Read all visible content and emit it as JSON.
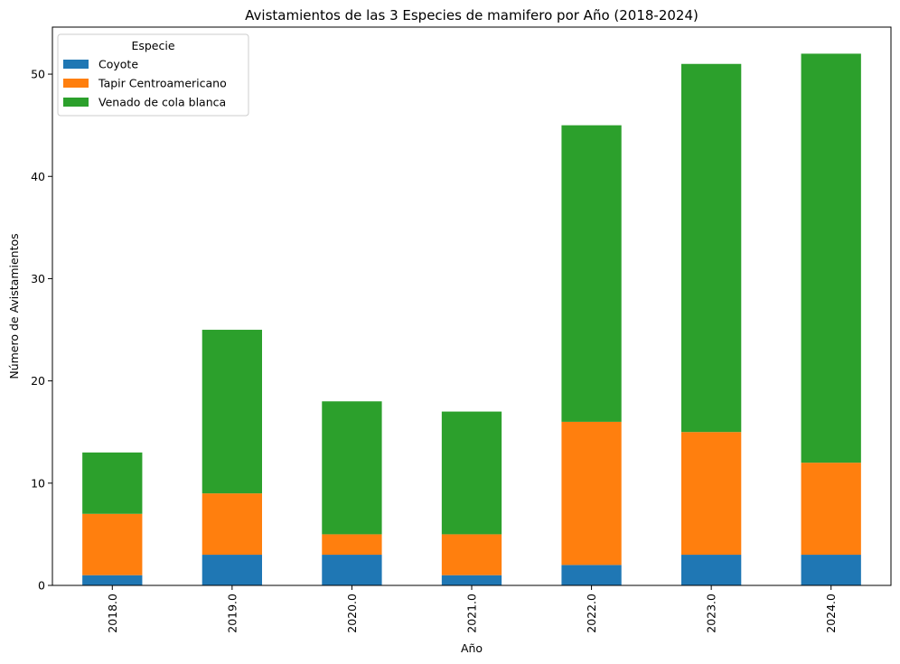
{
  "chart_data": {
    "type": "bar",
    "stacked": true,
    "title": "Avistamientos de las 3 Especies de mamifero por Año (2018-2024)",
    "xlabel": "Año",
    "ylabel": "Número de Avistamientos",
    "categories": [
      "2018.0",
      "2019.0",
      "2020.0",
      "2021.0",
      "2022.0",
      "2023.0",
      "2024.0"
    ],
    "series": [
      {
        "name": "Coyote",
        "color": "#1f77b4",
        "values": [
          1,
          3,
          3,
          1,
          2,
          3,
          3
        ]
      },
      {
        "name": "Tapir Centroamericano",
        "color": "#ff7f0e",
        "values": [
          6,
          6,
          2,
          4,
          14,
          12,
          9
        ]
      },
      {
        "name": "Venado de cola blanca",
        "color": "#2ca02c",
        "values": [
          6,
          16,
          13,
          12,
          29,
          36,
          40
        ]
      }
    ],
    "ylim": [
      0,
      54.6
    ],
    "yticks": [
      0,
      10,
      20,
      30,
      40,
      50
    ],
    "grid": false,
    "legend": {
      "title": "Especie",
      "placement": "top-left"
    }
  }
}
